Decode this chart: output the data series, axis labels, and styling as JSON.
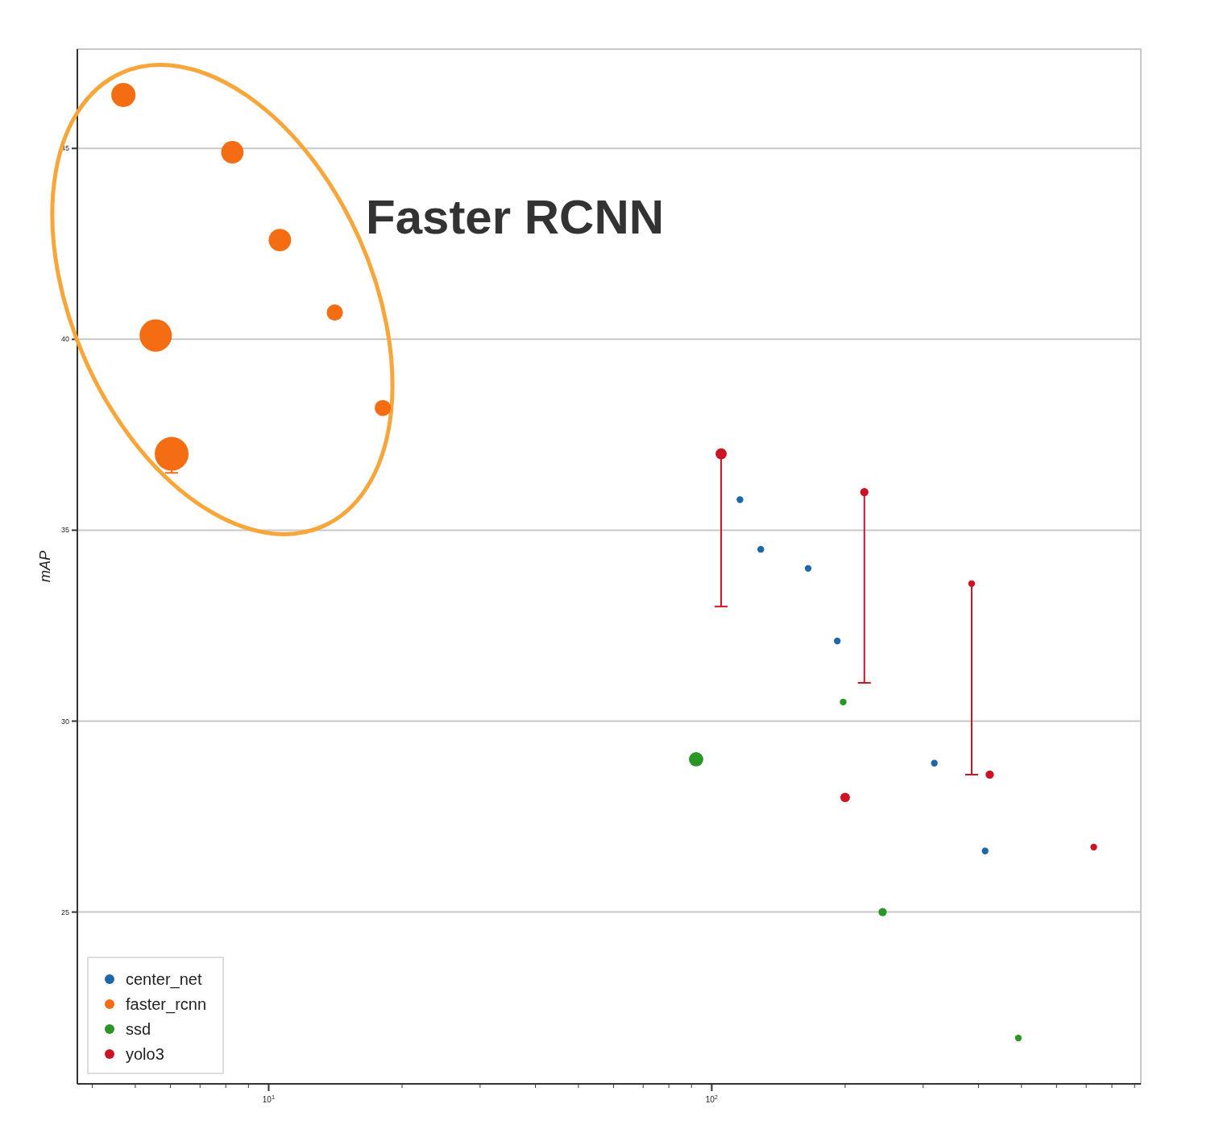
{
  "chart_data": {
    "type": "bubble",
    "ylabel": "mAP",
    "log": "x",
    "grid": "y",
    "legend": "bottom left",
    "marker": "circle",
    "xlim": [
      3.7,
      930
    ],
    "xticks": [
      {
        "value": 10,
        "label": "10$^{1}$"
      },
      {
        "value": 100,
        "label": "10$^{2}$"
      }
    ],
    "ylim": [
      20.5,
      47.6
    ],
    "yticks": [
      25,
      30,
      35,
      40,
      45
    ],
    "annotations": [
      "Faster RCNN"
    ],
    "series": [
      {
        "name": "center_net",
        "color": "#1f67a8",
        "x": [
          115.8,
          129,
          165,
          192,
          318,
          414
        ],
        "values": [
          35.8,
          34.5,
          34.0,
          32.1,
          28.9,
          26.6
        ],
        "sizes": [
          0.04,
          0.04,
          0.04,
          0.04,
          0.04,
          0.04
        ]
      },
      {
        "name": "faster_rcnn",
        "color": "#f46d13",
        "x": [
          4.7,
          8.28,
          10.6,
          14.1,
          5.56,
          18.1,
          6.04
        ],
        "values": [
          46.4,
          44.9,
          42.6,
          40.7,
          40.1,
          38.2,
          37.0
        ],
        "sizes": [
          0.51,
          0.44,
          0.44,
          0.23,
          0.91,
          0.23,
          1
        ],
        "errors": [
          null,
          null,
          null,
          null,
          null,
          null,
          [
            36.5,
            37.0
          ]
        ]
      },
      {
        "name": "ssd",
        "color": "#2a9626",
        "x": [
          92.2,
          198,
          243,
          492
        ],
        "values": [
          29.0,
          30.5,
          25.0,
          21.7
        ],
        "sizes": [
          0.18,
          0.04,
          0.06,
          0.04
        ]
      },
      {
        "name": "yolo3",
        "color": "#cc1424",
        "x": [
          105,
          221,
          386,
          424,
          200,
          728
        ],
        "values": [
          37.0,
          36.0,
          33.6,
          28.6,
          28.0,
          26.7
        ],
        "sizes": [
          0.11,
          0.06,
          0.04,
          0.06,
          0.08,
          0.04
        ],
        "errors": [
          [
            33.0,
            37.0
          ],
          [
            31.0,
            36.0
          ],
          [
            28.6,
            33.6
          ],
          null,
          null,
          null
        ]
      }
    ]
  }
}
